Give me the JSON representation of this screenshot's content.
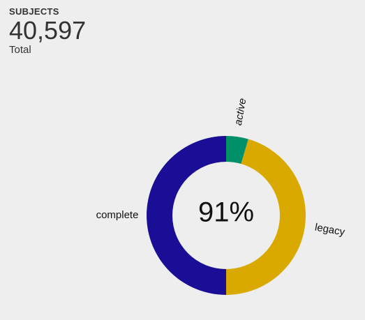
{
  "stat": {
    "label": "SUBJECTS",
    "value": "40,597",
    "sublabel": "Total"
  },
  "chart_data": {
    "type": "pie",
    "center_text": "91%",
    "categories": [
      "active",
      "legacy",
      "complete"
    ],
    "values": [
      4.5,
      45.5,
      50
    ],
    "colors": [
      "#00906a",
      "#d9a900",
      "#1a0d96"
    ]
  }
}
